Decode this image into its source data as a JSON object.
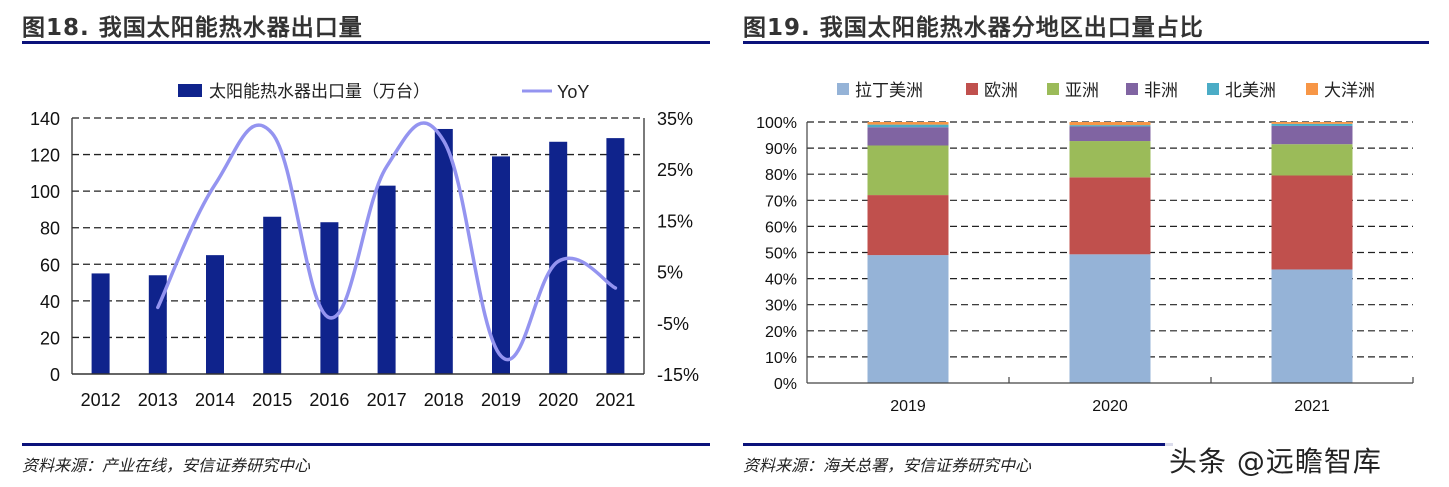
{
  "figures": [
    {
      "title": "图18. 我国太阳能热水器出口量",
      "source": "资料来源：产业在线，安信证券研究中心"
    },
    {
      "title": "图19. 我国太阳能热水器分地区出口量占比",
      "source": "资料来源：海关总署，安信证券研究中心"
    }
  ],
  "watermark": "头条 @远瞻智库",
  "colors": {
    "rule": "#0b127a",
    "bar": "#0f238c",
    "yoy": "#9494f0"
  },
  "chart_data": [
    {
      "type": "bar",
      "title": "图18. 我国太阳能热水器出口量",
      "categories": [
        "2012",
        "2013",
        "2014",
        "2015",
        "2016",
        "2017",
        "2018",
        "2019",
        "2020",
        "2021"
      ],
      "series": [
        {
          "name": "太阳能热水器出口量（万台）",
          "type": "bar",
          "axis": "left",
          "values": [
            55,
            54,
            65,
            86,
            83,
            103,
            134,
            119,
            127,
            129
          ]
        },
        {
          "name": "YoY",
          "type": "line",
          "axis": "right",
          "values": [
            null,
            -2,
            22,
            32,
            -4,
            25.5,
            30.5,
            -11.5,
            7,
            1.8
          ]
        }
      ],
      "ylim": [
        0,
        140
      ],
      "yticks": [
        "0",
        "20",
        "40",
        "60",
        "80",
        "100",
        "120",
        "140"
      ],
      "y2lim": [
        -15,
        35
      ],
      "y2ticks": [
        "-15%",
        "-5%",
        "5%",
        "15%",
        "25%",
        "35%"
      ],
      "grid": true,
      "legend": "top"
    },
    {
      "type": "bar",
      "stacked": true,
      "title": "图19. 我国太阳能热水器分地区出口量占比",
      "categories": [
        "2019",
        "2020",
        "2021"
      ],
      "series": [
        {
          "name": "拉丁美洲",
          "color": "#95b3d7",
          "values": [
            49,
            49.3,
            43.5
          ]
        },
        {
          "name": "欧洲",
          "color": "#c0504d",
          "values": [
            23,
            29.5,
            36
          ]
        },
        {
          "name": "亚洲",
          "color": "#9bbb59",
          "values": [
            19,
            13.9,
            12
          ]
        },
        {
          "name": "非洲",
          "color": "#8064a2",
          "values": [
            7,
            5.6,
            7
          ]
        },
        {
          "name": "北美洲",
          "color": "#4bacc6",
          "values": [
            1,
            0.5,
            0.8
          ]
        },
        {
          "name": "大洋洲",
          "color": "#f79646",
          "values": [
            1,
            1.2,
            0.7
          ]
        }
      ],
      "ylim": [
        0,
        100
      ],
      "yticks": [
        "0%",
        "10%",
        "20%",
        "30%",
        "40%",
        "50%",
        "60%",
        "70%",
        "80%",
        "90%",
        "100%"
      ],
      "grid": true,
      "legend": "top"
    }
  ]
}
